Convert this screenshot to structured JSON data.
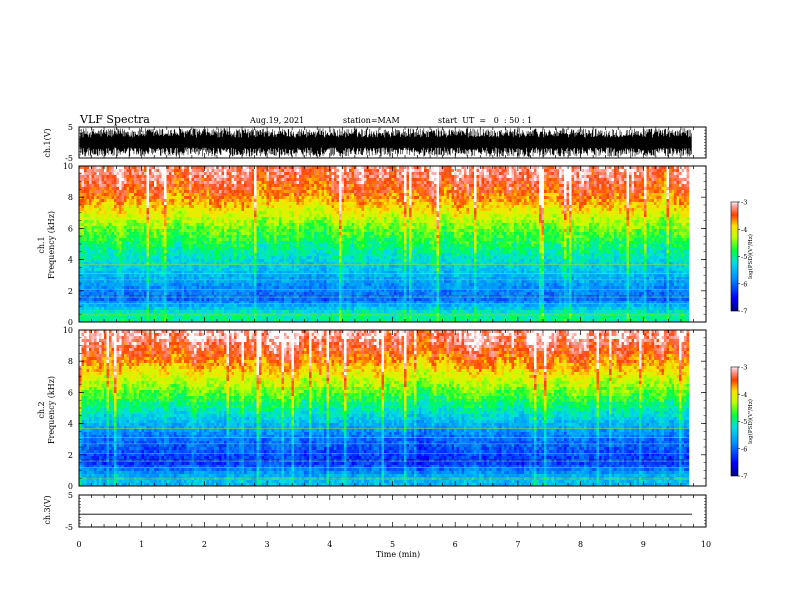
{
  "header": {
    "title": "VLF Spectra",
    "date": "Aug.19, 2021",
    "station": "station=MAM",
    "start_time": "start  UT  =   0  : 50 : 1"
  },
  "chart_data": [
    {
      "type": "line",
      "panel": "ch1-waveform",
      "ylabel": "ch.1(V)",
      "ylim": [
        -5,
        5
      ],
      "yticks": [
        "5",
        "-5"
      ],
      "xlim": [
        0,
        10
      ],
      "description_of_series": "dense noisy waveform filling most of range",
      "series": [
        {
          "values_envelope": [
            -4.6,
            4.6
          ]
        }
      ]
    },
    {
      "type": "heatmap",
      "panel": "ch1-spectrogram",
      "ylabel": "ch.1\nFrequency (kHz)",
      "ylim": [
        0,
        10
      ],
      "yticks": [
        "0",
        "2",
        "4",
        "6",
        "8",
        "10"
      ],
      "xlim": [
        0,
        10
      ],
      "colorbar": {
        "label": "log(PSD)(V²/Hz)",
        "range": [
          -7,
          -3
        ],
        "ticks": [
          "-3",
          "-4",
          "-5",
          "-6",
          "-7"
        ]
      },
      "profile": [
        {
          "freq_khz": 0.5,
          "log_psd": -5.0
        },
        {
          "freq_khz": 1.5,
          "log_psd": -6.0
        },
        {
          "freq_khz": 3.0,
          "log_psd": -5.5
        },
        {
          "freq_khz": 4.5,
          "log_psd": -5.0
        },
        {
          "freq_khz": 6.0,
          "log_psd": -4.5
        },
        {
          "freq_khz": 8.0,
          "log_psd": -3.6
        },
        {
          "freq_khz": 9.5,
          "log_psd": -3.2
        }
      ]
    },
    {
      "type": "heatmap",
      "panel": "ch2-spectrogram",
      "ylabel": "ch.2\nFrequency (kHz)",
      "ylim": [
        0,
        10
      ],
      "yticks": [
        "0",
        "2",
        "4",
        "6",
        "8",
        "10"
      ],
      "xlim": [
        0,
        10
      ],
      "colorbar": {
        "label": "log(PSD)(V²/Hz)",
        "range": [
          -7,
          -3
        ],
        "ticks": [
          "-3",
          "-4",
          "-5",
          "-6",
          "-7"
        ]
      },
      "profile": [
        {
          "freq_khz": 0.5,
          "log_psd": -5.5
        },
        {
          "freq_khz": 1.5,
          "log_psd": -6.3
        },
        {
          "freq_khz": 3.0,
          "log_psd": -6.0
        },
        {
          "freq_khz": 4.5,
          "log_psd": -5.3
        },
        {
          "freq_khz": 6.0,
          "log_psd": -4.6
        },
        {
          "freq_khz": 8.0,
          "log_psd": -3.7
        },
        {
          "freq_khz": 9.5,
          "log_psd": -3.2
        }
      ]
    },
    {
      "type": "line",
      "panel": "ch3-waveform",
      "ylabel": "ch.3(V)",
      "ylim": [
        -5,
        5
      ],
      "yticks": [
        "5",
        "-5"
      ],
      "xlim": [
        0,
        10
      ],
      "series": [
        {
          "values": [
            -1,
            -1
          ]
        }
      ]
    }
  ],
  "xaxis": {
    "label": "Time (min)",
    "ticks": [
      "0",
      "1",
      "2",
      "3",
      "4",
      "5",
      "6",
      "7",
      "8",
      "9",
      "10"
    ]
  },
  "colors": {
    "scale": [
      "#000099",
      "#0000ff",
      "#0080ff",
      "#00e0e0",
      "#00ff40",
      "#a0ff00",
      "#ffff00",
      "#ff9000",
      "#ff2000",
      "#ffffff"
    ]
  }
}
